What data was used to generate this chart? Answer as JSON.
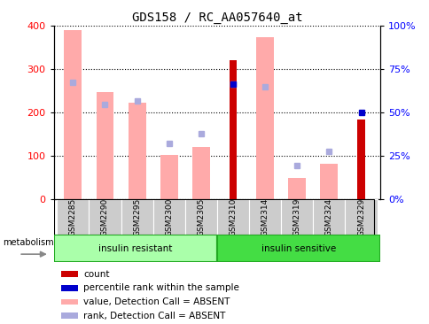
{
  "title": "GDS158 / RC_AA057640_at",
  "samples": [
    "GSM2285",
    "GSM2290",
    "GSM2295",
    "GSM2300",
    "GSM2305",
    "GSM2310",
    "GSM2314",
    "GSM2319",
    "GSM2324",
    "GSM2329"
  ],
  "value_absent": [
    390,
    248,
    222,
    103,
    121,
    0,
    375,
    50,
    82,
    0
  ],
  "rank_absent": [
    270,
    218,
    227,
    128,
    152,
    265,
    260,
    78,
    110,
    0
  ],
  "count": [
    0,
    0,
    0,
    0,
    0,
    320,
    0,
    0,
    0,
    185
  ],
  "percentile_rank": [
    0,
    0,
    0,
    0,
    0,
    265,
    0,
    0,
    0,
    200
  ],
  "ylim_left": [
    0,
    400
  ],
  "ylim_right": [
    0,
    100
  ],
  "yticks_left": [
    0,
    100,
    200,
    300,
    400
  ],
  "ytick_labels_left": [
    "0",
    "100",
    "200",
    "300",
    "400"
  ],
  "ytick_labels_right": [
    "0%",
    "25%",
    "50%",
    "75%",
    "100%"
  ],
  "color_count": "#cc0000",
  "color_percentile": "#0000cc",
  "color_value_absent": "#ffaaaa",
  "color_rank_absent": "#aaaadd",
  "color_group1_bg": "#aaffaa",
  "color_group2_bg": "#44dd44",
  "color_xlabel_bg": "#cccccc",
  "group1_label": "insulin resistant",
  "group2_label": "insulin sensitive",
  "legend_items": [
    {
      "color": "#cc0000",
      "label": "count"
    },
    {
      "color": "#0000cc",
      "label": "percentile rank within the sample"
    },
    {
      "color": "#ffaaaa",
      "label": "value, Detection Call = ABSENT"
    },
    {
      "color": "#aaaadd",
      "label": "rank, Detection Call = ABSENT"
    }
  ]
}
